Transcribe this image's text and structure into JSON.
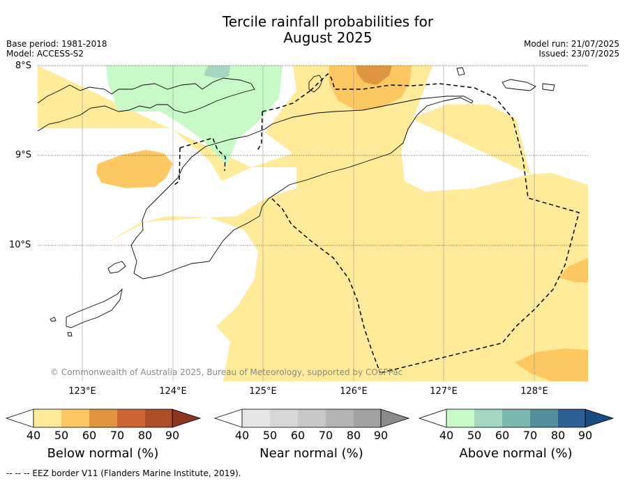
{
  "title_line1": "Tercile rainfall probabilities for",
  "title_line2": "August 2025",
  "meta_left": [
    "Base period: 1981-2018",
    "Model: ACCESS-S2"
  ],
  "meta_right": [
    "Model run: 21/07/2025",
    "Issued: 23/07/2025"
  ],
  "lat_labels": [
    "8°S",
    "9°S",
    "10°S"
  ],
  "lon_labels": [
    "123°E",
    "124°E",
    "125°E",
    "126°E",
    "127°E",
    "128°E"
  ],
  "copyright": "© Commonwealth of Australia 2025, Bureau of Meteorology, supported by COSPPac",
  "colorbars": [
    {
      "label": "Below normal (%)",
      "ticks": [
        "40",
        "50",
        "60",
        "70",
        "80",
        "90"
      ],
      "colors": [
        "#ffeb99",
        "#fdc862",
        "#e0953f",
        "#cd6533",
        "#b04d2a",
        "#8c3521"
      ]
    },
    {
      "label": "Near normal (%)",
      "ticks": [
        "40",
        "50",
        "60",
        "70",
        "80",
        "90"
      ],
      "colors": [
        "#e6e6e6",
        "#d7d7d7",
        "#c7c7c7",
        "#b4b4b4",
        "#a2a2a2",
        "#8b8b8b"
      ]
    },
    {
      "label": "Above normal (%)",
      "ticks": [
        "40",
        "50",
        "60",
        "70",
        "80",
        "90"
      ],
      "colors": [
        "#c8fac8",
        "#a4d6c0",
        "#7cb6b0",
        "#538e9a",
        "#2e6096",
        "#1a4b80"
      ]
    }
  ],
  "footer": "--  --  -- EEZ border V11 (Flanders Marine Institute, 2019)."
}
